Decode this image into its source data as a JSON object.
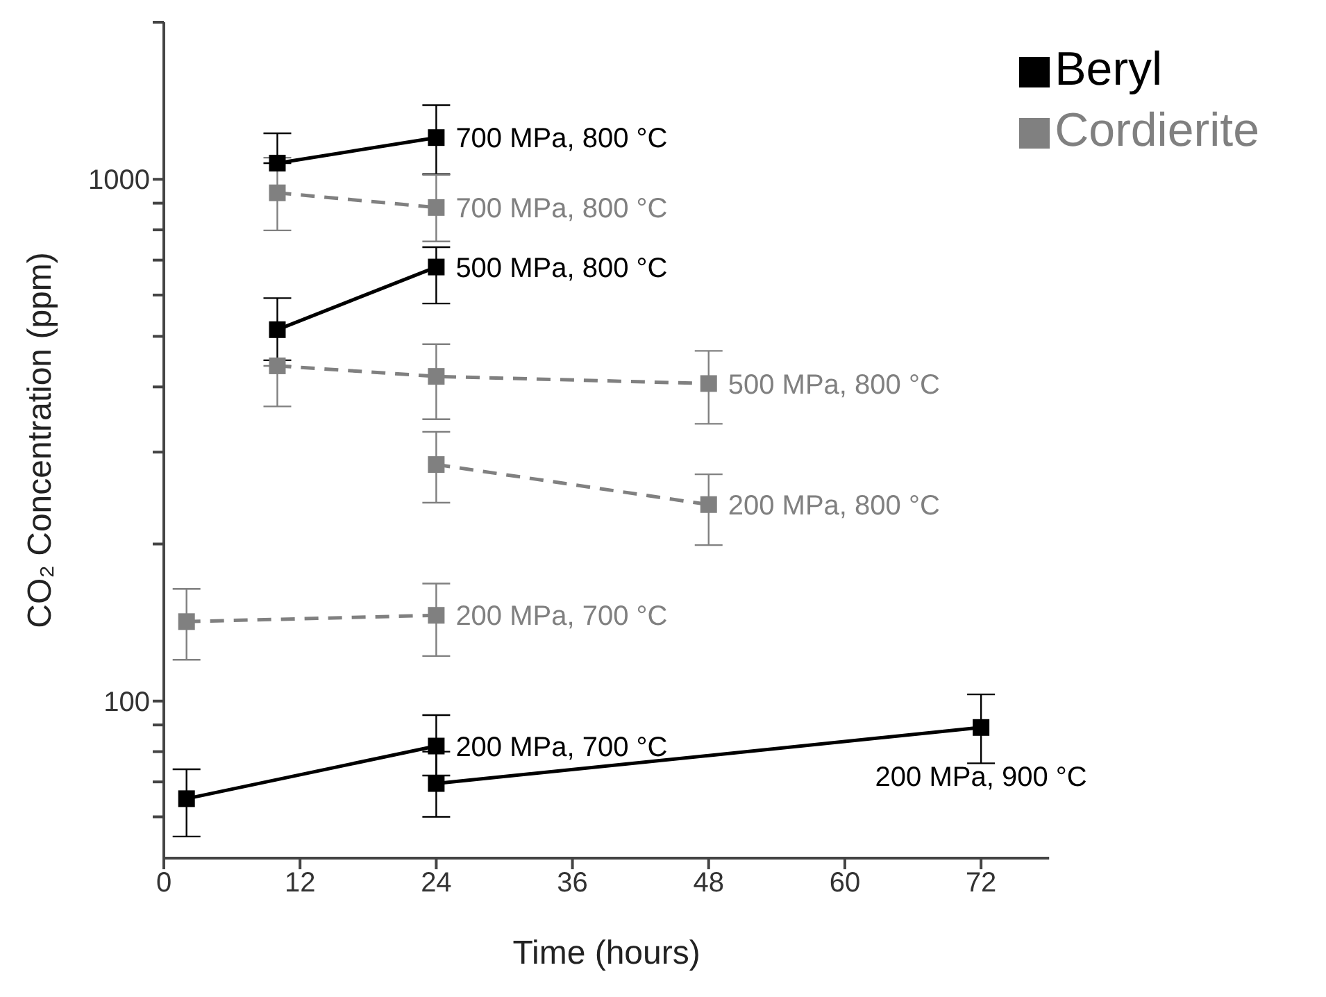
{
  "chart_data": {
    "type": "line",
    "xlabel": "Time (hours)",
    "ylabel": "CO₂ Concentration (ppm)",
    "log": "y",
    "xlim": [
      0,
      78
    ],
    "xticks": [
      0,
      12,
      24,
      36,
      48,
      60,
      72
    ],
    "ylim": [
      50,
      2000
    ],
    "yticks": [
      {
        "value": 60,
        "label": null
      },
      {
        "value": 70,
        "label": null
      },
      {
        "value": 80,
        "label": null
      },
      {
        "value": 90,
        "label": null
      },
      100,
      {
        "value": 200,
        "label": null
      },
      {
        "value": 300,
        "label": null
      },
      {
        "value": 400,
        "label": null
      },
      {
        "value": 500,
        "label": null
      },
      {
        "value": 600,
        "label": null
      },
      {
        "value": 700,
        "label": null
      },
      {
        "value": 800,
        "label": null
      },
      {
        "value": 900,
        "label": null
      },
      1000,
      {
        "value": 2000,
        "label": null
      }
    ],
    "grid": false,
    "legend": "top right",
    "marker": "square",
    "series": [
      {
        "name": "Beryl",
        "color": "#000000",
        "line_style": "solid",
        "x": [
          10,
          24
        ],
        "values": [
          1074,
          1202
        ],
        "errors": [
          [
            1074,
            1225
          ],
          [
            1023,
            1387
          ]
        ]
      },
      {
        "color": "#000000",
        "line_style": "solid",
        "x": [
          10,
          24
        ],
        "values": [
          515,
          679
        ],
        "errors": [
          [
            450,
            592
          ],
          [
            578,
            741
          ]
        ]
      },
      {
        "color": "#000000",
        "line_style": "solid",
        "x": [
          2,
          24
        ],
        "values": [
          65,
          82
        ],
        "errors": [
          [
            55,
            74
          ],
          [
            72,
            94
          ]
        ]
      },
      {
        "color": "#000000",
        "line_style": "solid",
        "x": [
          24,
          72
        ],
        "values": [
          69.5,
          89
        ],
        "errors": [
          [
            60,
            80
          ],
          [
            76,
            103
          ]
        ]
      },
      {
        "name": "Cordierite",
        "color": "#808080",
        "line_style": "dashed",
        "x": [
          10,
          24
        ],
        "values": [
          942,
          883
        ],
        "errors": [
          [
            798,
            1100
          ],
          [
            760,
            1020
          ]
        ]
      },
      {
        "color": "#808080",
        "line_style": "dashed",
        "x": [
          10,
          24,
          48
        ],
        "values": [
          439,
          419,
          406
        ],
        "errors": [
          [
            367,
            439
          ],
          [
            347,
            483
          ],
          [
            340,
            469
          ]
        ]
      },
      {
        "color": "#808080",
        "line_style": "dashed",
        "x": [
          24,
          48
        ],
        "values": [
          284,
          238
        ],
        "errors": [
          [
            240,
            328
          ],
          [
            199,
            272
          ]
        ]
      },
      {
        "color": "#808080",
        "line_style": "dashed",
        "x": [
          2,
          24
        ],
        "values": [
          142,
          146
        ],
        "errors": [
          [
            120,
            164
          ],
          [
            122,
            168
          ]
        ]
      }
    ],
    "annotations": [
      {
        "text": "700 MPa, 800 °C",
        "x": 24,
        "y": 1202
      },
      {
        "text": "700 MPa, 800 °C",
        "x": 24,
        "y": 883
      },
      {
        "text": "500 MPa, 800 °C",
        "x": 24,
        "y": 679
      },
      {
        "text": "500 MPa, 800 °C",
        "x": 48,
        "y": 406
      },
      {
        "text": "200 MPa, 800 °C",
        "x": 48,
        "y": 238
      },
      {
        "text": "200 MPa, 700 °C",
        "x": 24,
        "y": 146
      },
      {
        "text": "200 MPa, 700 °C",
        "x": 24,
        "y": 82
      },
      {
        "text": "200 MPa, 900 °C",
        "x": 72,
        "y": 89
      }
    ]
  }
}
